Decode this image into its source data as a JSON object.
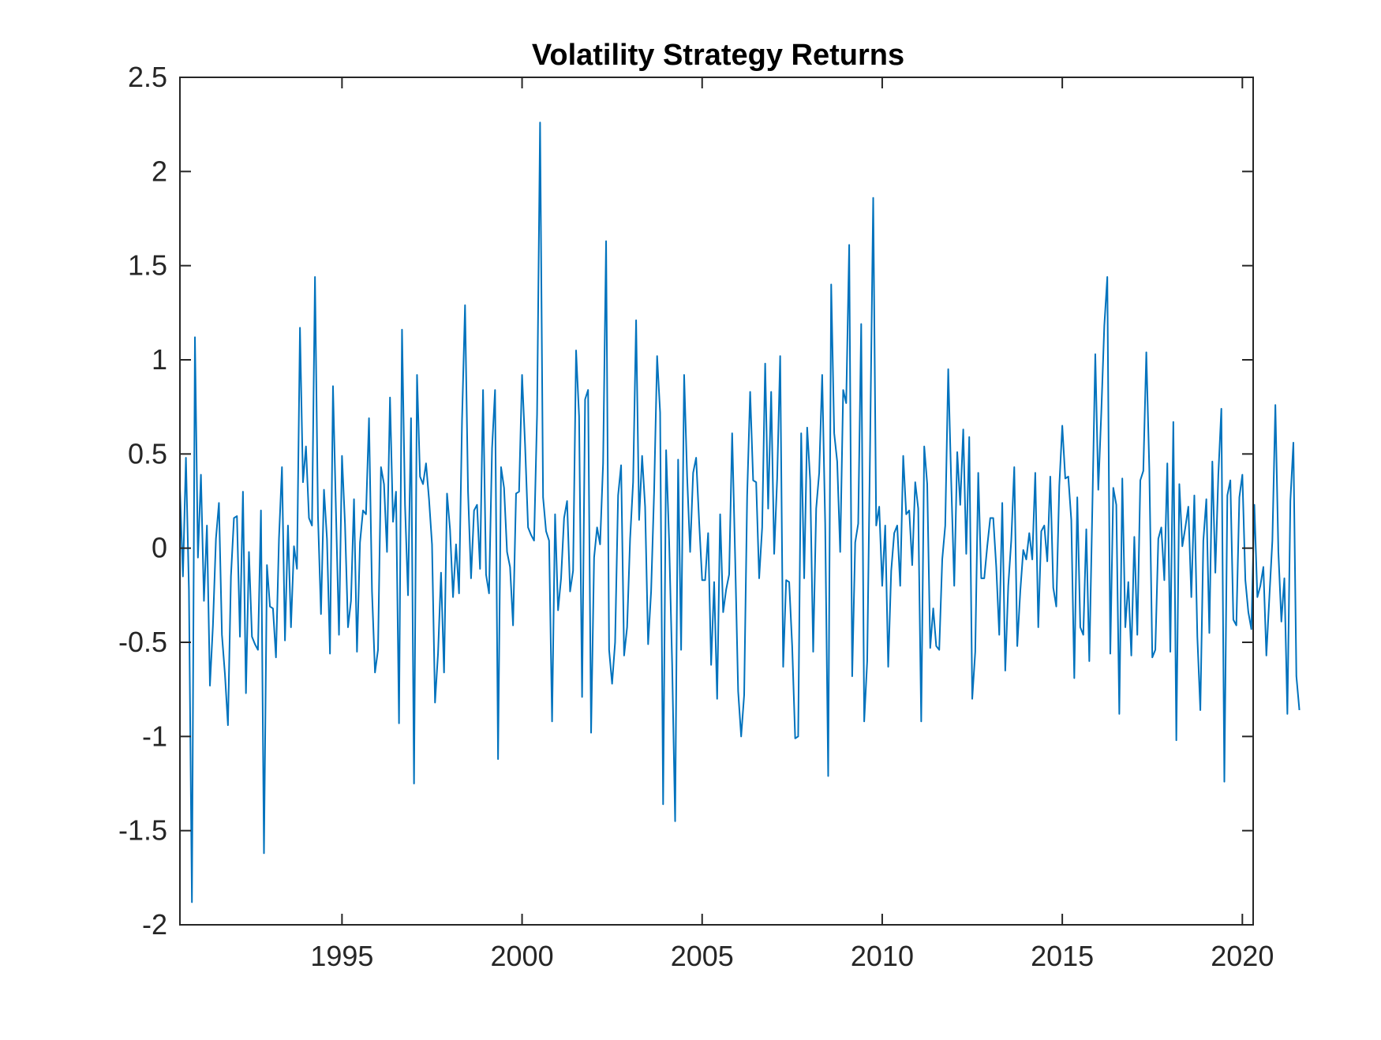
{
  "chart_data": {
    "type": "line",
    "title": "Volatility Strategy Returns",
    "xlabel": "",
    "ylabel": "",
    "xlim": [
      1990.5,
      2020.3
    ],
    "ylim": [
      -2,
      2.5
    ],
    "x_ticks": [
      1995,
      2000,
      2005,
      2010,
      2015,
      2020
    ],
    "x_tick_labels": [
      "1995",
      "2000",
      "2005",
      "2010",
      "2015",
      "2020"
    ],
    "y_ticks": [
      2.5,
      2,
      1.5,
      1,
      0.5,
      0,
      -0.5,
      -1,
      -1.5,
      -2
    ],
    "y_tick_labels": [
      "2.5",
      "2",
      "1.5",
      "1",
      "0.5",
      "0",
      "-0.5",
      "-1",
      "-1.5",
      "-2"
    ],
    "grid": false,
    "box": true,
    "series": [
      {
        "color": "#0072BD",
        "start_year": 1990.5,
        "step_years": 0.0833333,
        "values": [
          0.32,
          -0.15,
          0.48,
          -0.22,
          -1.88,
          1.12,
          -0.05,
          0.39,
          -0.28,
          0.12,
          -0.73,
          -0.41,
          0.05,
          0.24,
          -0.46,
          -0.67,
          -0.94,
          -0.15,
          0.16,
          0.17,
          -0.47,
          0.3,
          -0.77,
          -0.02,
          -0.47,
          -0.51,
          -0.54,
          0.2,
          -1.62,
          -0.09,
          -0.31,
          -0.32,
          -0.58,
          0.05,
          0.43,
          -0.49,
          0.12,
          -0.42,
          0.01,
          -0.11,
          1.17,
          0.35,
          0.54,
          0.16,
          0.12,
          1.44,
          0.17,
          -0.35,
          0.31,
          0.05,
          -0.56,
          0.86,
          0.19,
          -0.46,
          0.49,
          0.13,
          -0.42,
          -0.28,
          0.26,
          -0.55,
          0.03,
          0.2,
          0.18,
          0.69,
          -0.23,
          -0.66,
          -0.54,
          0.43,
          0.34,
          -0.02,
          0.8,
          0.14,
          0.3,
          -0.93,
          1.16,
          0.23,
          -0.25,
          0.69,
          -1.25,
          0.92,
          0.38,
          0.34,
          0.45,
          0.26,
          0.02,
          -0.82,
          -0.56,
          -0.13,
          -0.66,
          0.29,
          0.1,
          -0.26,
          0.02,
          -0.24,
          0.68,
          1.29,
          0.3,
          -0.16,
          0.2,
          0.23,
          -0.11,
          0.84,
          -0.14,
          -0.24,
          0.53,
          0.84,
          -1.12,
          0.43,
          0.32,
          -0.02,
          -0.1,
          -0.41,
          0.29,
          0.3,
          0.92,
          0.55,
          0.11,
          0.07,
          0.04,
          0.71,
          2.26,
          0.27,
          0.09,
          0.04,
          -0.92,
          0.18,
          -0.33,
          -0.16,
          0.16,
          0.25,
          -0.23,
          -0.12,
          1.05,
          0.7,
          -0.79,
          0.79,
          0.84,
          -0.98,
          -0.05,
          0.11,
          0.02,
          0.45,
          1.63,
          -0.54,
          -0.72,
          -0.5,
          0.28,
          0.44,
          -0.57,
          -0.42,
          0.05,
          0.35,
          1.21,
          0.15,
          0.49,
          0.22,
          -0.51,
          -0.23,
          0.3,
          1.02,
          0.72,
          -1.36,
          0.52,
          0.04,
          -0.61,
          -1.45,
          0.47,
          -0.54,
          0.92,
          0.38,
          -0.02,
          0.4,
          0.48,
          0.14,
          -0.17,
          -0.17,
          0.08,
          -0.62,
          -0.18,
          -0.8,
          0.18,
          -0.34,
          -0.22,
          -0.14,
          0.61,
          -0.05,
          -0.76,
          -1.0,
          -0.78,
          0.28,
          0.83,
          0.36,
          0.35,
          -0.16,
          0.11,
          0.98,
          0.21,
          0.83,
          -0.03,
          0.37,
          1.02,
          -0.63,
          -0.17,
          -0.18,
          -0.52,
          -1.01,
          -1.0,
          0.61,
          -0.16,
          0.64,
          0.36,
          -0.55,
          0.21,
          0.4,
          0.92,
          0.13,
          -1.21,
          1.4,
          0.61,
          0.46,
          -0.02,
          0.84,
          0.77,
          1.61,
          -0.68,
          0.03,
          0.13,
          1.19,
          -0.92,
          -0.6,
          0.59,
          1.86,
          0.12,
          0.22,
          -0.2,
          0.12,
          -0.63,
          -0.12,
          0.08,
          0.12,
          -0.2,
          0.49,
          0.18,
          0.2,
          -0.09,
          0.35,
          0.21,
          -0.92,
          0.54,
          0.34,
          -0.53,
          -0.32,
          -0.52,
          -0.54,
          -0.06,
          0.12,
          0.95,
          0.35,
          -0.2,
          0.51,
          0.23,
          0.63,
          -0.03,
          0.59,
          -0.8,
          -0.55,
          0.4,
          -0.16,
          -0.16,
          0.01,
          0.16,
          0.16,
          -0.1,
          -0.46,
          0.24,
          -0.65,
          -0.2,
          0.04,
          0.43,
          -0.52,
          -0.23,
          -0.01,
          -0.06,
          0.08,
          -0.06,
          0.4,
          -0.42,
          0.09,
          0.12,
          -0.07,
          0.38,
          -0.21,
          -0.31,
          0.33,
          0.65,
          0.37,
          0.38,
          0.15,
          -0.69,
          0.27,
          -0.42,
          -0.46,
          0.1,
          -0.6,
          0.2,
          1.03,
          0.31,
          0.72,
          1.18,
          1.44,
          -0.56,
          0.32,
          0.23,
          -0.88,
          0.37,
          -0.42,
          -0.18,
          -0.57,
          0.06,
          -0.46,
          0.36,
          0.41,
          1.04,
          0.42,
          -0.58,
          -0.54,
          0.05,
          0.11,
          -0.17,
          0.45,
          -0.55,
          0.67,
          -1.02,
          0.34,
          0.01,
          0.11,
          0.22,
          -0.26,
          0.28,
          -0.47,
          -0.86,
          0.04,
          0.26,
          -0.45,
          0.46,
          -0.13,
          0.39,
          0.74,
          -1.24,
          0.28,
          0.36,
          -0.38,
          -0.41,
          0.27,
          0.39,
          -0.17,
          -0.34,
          -0.43,
          0.23,
          -0.26,
          -0.2,
          -0.1,
          -0.57,
          -0.26,
          0.04,
          0.76,
          -0.02,
          -0.39,
          -0.16,
          -0.88,
          0.25,
          0.56,
          -0.68,
          -0.86
        ]
      }
    ]
  }
}
